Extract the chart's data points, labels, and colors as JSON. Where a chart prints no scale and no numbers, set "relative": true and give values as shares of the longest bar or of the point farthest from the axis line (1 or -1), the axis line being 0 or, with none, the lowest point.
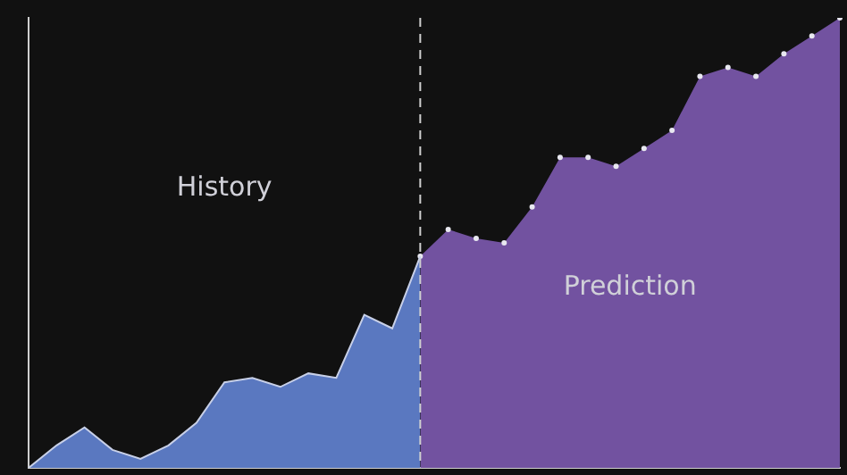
{
  "chart_data": {
    "type": "area",
    "relative": true,
    "legend": false,
    "categories": [
      null,
      null,
      null,
      null,
      null,
      null,
      null,
      null,
      null,
      null,
      null,
      null,
      null,
      null,
      null,
      null,
      null,
      null,
      null,
      null,
      null,
      null,
      null,
      null,
      null,
      null,
      null,
      null,
      null,
      null
    ],
    "series": [
      {
        "color": "#5a78c0",
        "marker": "none",
        "values": [
          0,
          0.05,
          0.09,
          0.04,
          0.02,
          0.05,
          0.1,
          0.19,
          0.2,
          0.18,
          0.21,
          0.2,
          0.34,
          0.31,
          0.47,
          null,
          null,
          null,
          null,
          null,
          null,
          null,
          null,
          null,
          null,
          null,
          null,
          null,
          null,
          null
        ]
      },
      {
        "color": "#7252a0",
        "marker": "circle",
        "values": [
          null,
          null,
          null,
          null,
          null,
          null,
          null,
          null,
          null,
          null,
          null,
          null,
          null,
          null,
          0.47,
          0.53,
          0.51,
          0.5,
          0.58,
          0.69,
          0.69,
          0.67,
          0.71,
          0.75,
          0.87,
          0.89,
          0.87,
          0.92,
          0.96,
          1.0
        ]
      }
    ],
    "annotations": [
      "History",
      "Prediction"
    ]
  }
}
